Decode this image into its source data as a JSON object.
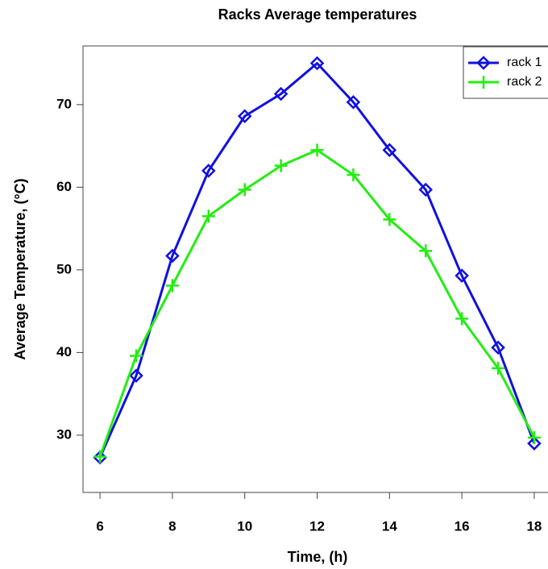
{
  "chart_data": {
    "type": "line",
    "title": "Racks Average temperatures",
    "x_label": "Time, (h)",
    "y_label": "Average Temperature, (°C)",
    "x": [
      6,
      7,
      8,
      9,
      10,
      11,
      12,
      13,
      14,
      15,
      16,
      17,
      18
    ],
    "series": [
      {
        "name": "rack 1",
        "color": "#1010e0",
        "marker": "diamond",
        "values": [
          27.3,
          37.2,
          51.7,
          62.0,
          68.6,
          71.3,
          75.0,
          70.3,
          64.5,
          59.7,
          49.3,
          40.6,
          29.0
        ]
      },
      {
        "name": "rack 2",
        "color": "#22ee11",
        "marker": "plus",
        "values": [
          27.4,
          39.6,
          48.1,
          56.5,
          59.7,
          62.6,
          64.5,
          61.5,
          56.1,
          52.3,
          44.1,
          38.1,
          29.7
        ]
      }
    ],
    "xlim": [
      5.53,
      18.38
    ],
    "xticks": [
      6,
      8,
      10,
      12,
      14,
      16,
      18
    ],
    "ylim": [
      23.07,
      77.1
    ],
    "yticks": [
      30,
      40,
      50,
      60,
      70
    ],
    "legend": "top-right"
  }
}
